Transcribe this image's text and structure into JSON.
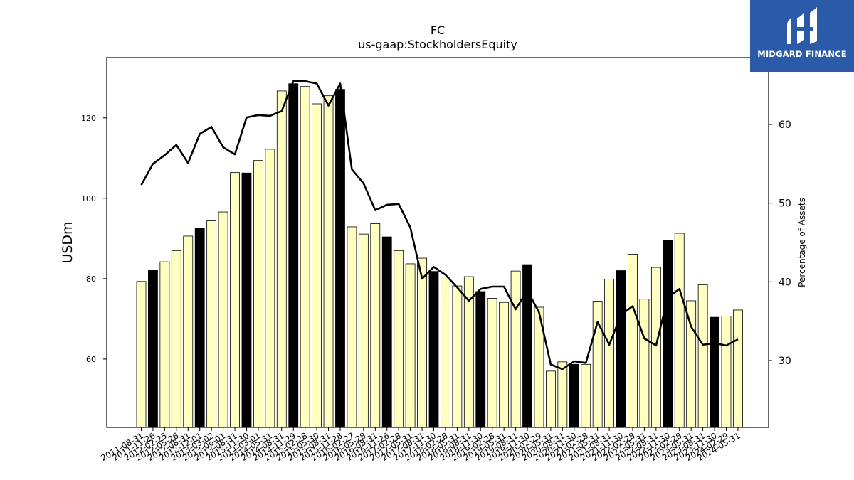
{
  "brand": {
    "name": "MIDGARD FINANCE",
    "background": "#2b5aa8"
  },
  "chart_data": {
    "type": "bar",
    "title": "FC",
    "subtitle": "us-gaap:StockholdersEquity",
    "ylabel": "USDm",
    "y2label": "Percentage of Assets",
    "ylim": [
      43,
      135
    ],
    "y2lim": [
      21.5,
      68.5
    ],
    "yticks": [
      60,
      80,
      100,
      120
    ],
    "y2ticks": [
      30,
      40,
      50,
      60
    ],
    "grid": false,
    "legend": "none",
    "colors": {
      "bar": "#ffffc0",
      "bar_highlight": "#000000",
      "line": "#000000"
    },
    "categories": [
      "2011-08-31",
      "2011-11-26",
      "2012-02-25",
      "2012-05-26",
      "2012-08-31",
      "2012-12-01",
      "2013-03-02",
      "2013-06-01",
      "2013-08-31",
      "2013-11-30",
      "2014-03-01",
      "2014-05-31",
      "2014-08-31",
      "2014-11-29",
      "2015-02-28",
      "2015-05-30",
      "2015-08-31",
      "2015-11-28",
      "2016-02-27",
      "2016-05-28",
      "2016-08-31",
      "2016-11-26",
      "2017-02-28",
      "2017-05-31",
      "2017-08-31",
      "2017-11-30",
      "2018-02-28",
      "2018-05-31",
      "2018-08-31",
      "2018-11-30",
      "2019-02-28",
      "2019-05-31",
      "2019-08-31",
      "2019-11-30",
      "2020-02-29",
      "2020-05-31",
      "2020-08-31",
      "2020-11-30",
      "2021-02-28",
      "2021-05-31",
      "2021-08-31",
      "2021-11-30",
      "2022-02-28",
      "2022-05-31",
      "2022-08-31",
      "2022-11-30",
      "2023-02-28",
      "2023-05-31",
      "2023-08-31",
      "2023-11-30",
      "2024-02-29",
      "2024-05-31"
    ],
    "values": [
      79.3,
      82.1,
      84.2,
      87.0,
      90.6,
      92.5,
      94.4,
      96.6,
      106.4,
      106.3,
      109.4,
      112.2,
      126.7,
      128.5,
      127.8,
      123.5,
      125.5,
      127.1,
      92.9,
      91.1,
      93.7,
      90.4,
      87.0,
      83.7,
      85.1,
      81.8,
      80.4,
      78.2,
      80.5,
      76.8,
      75.1,
      74.1,
      81.9,
      83.5,
      72.9,
      57.0,
      59.3,
      58.7,
      58.7,
      74.4,
      79.9,
      82.0,
      86.1,
      74.9,
      82.8,
      89.5,
      91.3,
      74.5,
      78.5,
      70.4,
      70.7,
      72.2
    ],
    "highlight": [
      false,
      true,
      false,
      false,
      false,
      true,
      false,
      false,
      false,
      true,
      false,
      false,
      false,
      true,
      false,
      false,
      false,
      true,
      false,
      false,
      false,
      true,
      false,
      false,
      false,
      true,
      false,
      false,
      false,
      true,
      false,
      false,
      false,
      true,
      false,
      false,
      false,
      true,
      false,
      false,
      false,
      true,
      false,
      false,
      false,
      true,
      false,
      false,
      false,
      true,
      false,
      false
    ],
    "series": [
      {
        "axis": "right",
        "values": [
          52.3,
          55.0,
          56.1,
          57.4,
          55.1,
          58.8,
          59.7,
          57.1,
          56.2,
          60.9,
          61.2,
          61.1,
          61.7,
          65.5,
          65.5,
          65.2,
          62.4,
          65.2,
          54.3,
          52.5,
          49.1,
          49.8,
          49.9,
          46.9,
          40.4,
          41.9,
          40.9,
          39.3,
          37.6,
          39.1,
          39.4,
          39.4,
          36.5,
          38.9,
          36.1,
          29.5,
          28.9,
          29.9,
          29.7,
          34.9,
          32.0,
          35.8,
          36.9,
          32.8,
          31.9,
          38.0,
          39.1,
          34.3,
          32.0,
          32.2,
          31.9,
          32.7
        ]
      }
    ]
  }
}
